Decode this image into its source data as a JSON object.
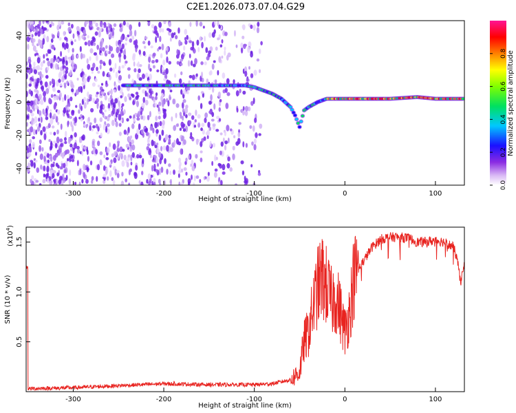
{
  "title": "C2E1.2026.073.07.04.G29",
  "colors": {
    "snr_line": "#e8231f",
    "axis": "#000000",
    "background": "#ffffff"
  },
  "chart_data": [
    {
      "type": "heatmap",
      "name": "spectrogram",
      "xlabel": "Height of straight line (km)",
      "ylabel": "Frequency (Hz)",
      "xlim": [
        -352,
        132
      ],
      "ylim": [
        -50,
        49
      ],
      "xticks": [
        -300,
        -200,
        -100,
        0,
        100
      ],
      "xtick_labels": [
        "-300",
        "-200",
        "-100",
        "0",
        "100"
      ],
      "yticks": [
        -40,
        -20,
        0,
        20,
        40
      ],
      "ytick_labels": [
        "-40",
        "-20",
        "0",
        "20",
        "40"
      ],
      "colorbar": {
        "label": "Normalized spectral amplitude",
        "range": [
          0,
          1
        ],
        "ticks": [
          0.0,
          0.2,
          0.4,
          0.6,
          0.8
        ],
        "tick_labels": [
          "0.0",
          "0.2",
          "0.4",
          "0.6",
          "0.8"
        ],
        "colors": [
          "#ffffff",
          "#8a2be2",
          "#1010ff",
          "#00c8ff",
          "#00e040",
          "#ffff00",
          "#ff8000",
          "#ff0000",
          "#ff1493"
        ]
      },
      "ridge": [
        [
          -245,
          10
        ],
        [
          -200,
          10
        ],
        [
          -150,
          10
        ],
        [
          -110,
          10
        ],
        [
          -100,
          9
        ],
        [
          -90,
          7
        ],
        [
          -80,
          5
        ],
        [
          -70,
          2
        ],
        [
          -60,
          -3
        ],
        [
          -55,
          -8
        ],
        [
          -50,
          -15
        ],
        [
          -45,
          -5
        ],
        [
          -40,
          -3
        ],
        [
          -30,
          0
        ],
        [
          -20,
          2
        ],
        [
          0,
          2
        ],
        [
          50,
          2
        ],
        [
          80,
          3
        ],
        [
          100,
          2
        ],
        [
          132,
          2
        ]
      ]
    },
    {
      "type": "line",
      "name": "snr",
      "xlabel": "Height of straight line (km)",
      "ylabel": "SNR (10 * v/v)",
      "yscale_note": "(x10",
      "yscale_exp": "4",
      "xlim": [
        -352,
        132
      ],
      "ylim": [
        0,
        1.65
      ],
      "xticks": [
        -300,
        -200,
        -100,
        0,
        100
      ],
      "xtick_labels": [
        "-300",
        "-200",
        "-100",
        "0",
        "100"
      ],
      "yticks": [
        0.5,
        1.0,
        1.5
      ],
      "ytick_labels": [
        "0.5",
        "1.0",
        "1.5"
      ],
      "series": [
        {
          "name": "SNR",
          "x": [
            -350,
            -300,
            -250,
            -200,
            -150,
            -100,
            -80,
            -60,
            -50,
            -45,
            -40,
            -35,
            -30,
            -25,
            -20,
            -15,
            -10,
            -5,
            0,
            5,
            10,
            20,
            30,
            40,
            50,
            60,
            70,
            80,
            90,
            100,
            110,
            120,
            125,
            128,
            130
          ],
          "y": [
            0.03,
            0.04,
            0.06,
            0.08,
            0.07,
            0.07,
            0.08,
            0.12,
            0.2,
            0.5,
            0.6,
            0.85,
            1.05,
            1.15,
            1.05,
            0.9,
            0.95,
            0.8,
            0.6,
            0.8,
            1.15,
            1.3,
            1.45,
            1.53,
            1.55,
            1.55,
            1.54,
            1.5,
            1.5,
            1.52,
            1.5,
            1.45,
            1.3,
            1.05,
            1.25
          ]
        }
      ]
    }
  ]
}
